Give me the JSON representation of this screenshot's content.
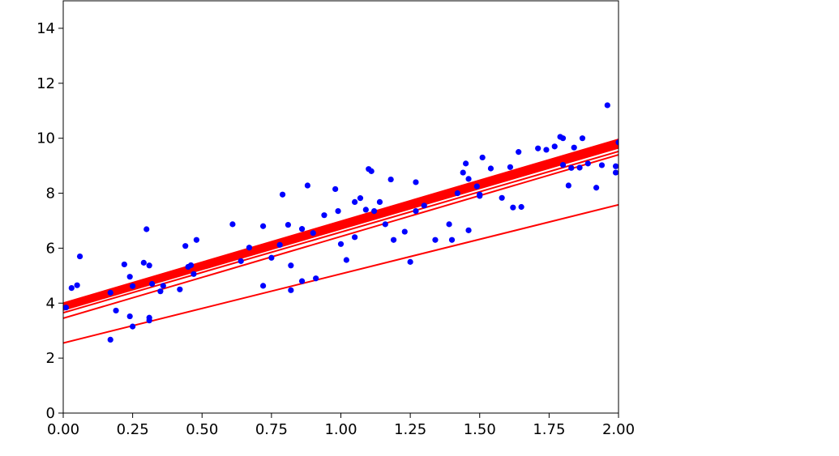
{
  "chart_data": {
    "type": "scatter",
    "title": "",
    "xlabel": "",
    "ylabel": "",
    "xlim": [
      0,
      2
    ],
    "ylim": [
      0,
      15
    ],
    "grid": false,
    "x_ticks": [
      "0.00",
      "0.25",
      "0.50",
      "0.75",
      "1.00",
      "1.25",
      "1.50",
      "1.75",
      "2.00"
    ],
    "x_tick_values": [
      0,
      0.25,
      0.5,
      0.75,
      1.0,
      1.25,
      1.5,
      1.75,
      2.0
    ],
    "y_ticks": [
      "0",
      "2",
      "4",
      "6",
      "8",
      "10",
      "12",
      "14"
    ],
    "y_tick_values": [
      0,
      2,
      4,
      6,
      8,
      10,
      12,
      14
    ],
    "scatter": {
      "color": "#0000ff",
      "points": [
        [
          0.01,
          3.84
        ],
        [
          0.03,
          4.55
        ],
        [
          0.05,
          4.65
        ],
        [
          0.06,
          5.7
        ],
        [
          0.17,
          4.38
        ],
        [
          0.17,
          2.67
        ],
        [
          0.19,
          3.73
        ],
        [
          0.22,
          5.41
        ],
        [
          0.24,
          3.52
        ],
        [
          0.24,
          4.96
        ],
        [
          0.25,
          3.15
        ],
        [
          0.25,
          4.62
        ],
        [
          0.29,
          5.47
        ],
        [
          0.3,
          6.69
        ],
        [
          0.31,
          5.37
        ],
        [
          0.31,
          3.47
        ],
        [
          0.31,
          3.37
        ],
        [
          0.32,
          4.7
        ],
        [
          0.35,
          4.43
        ],
        [
          0.36,
          4.63
        ],
        [
          0.42,
          4.5
        ],
        [
          0.44,
          6.08
        ],
        [
          0.45,
          5.32
        ],
        [
          0.46,
          5.38
        ],
        [
          0.47,
          5.06
        ],
        [
          0.48,
          6.3
        ],
        [
          0.61,
          6.87
        ],
        [
          0.64,
          5.53
        ],
        [
          0.67,
          6.02
        ],
        [
          0.72,
          6.8
        ],
        [
          0.72,
          4.63
        ],
        [
          0.75,
          5.65
        ],
        [
          0.78,
          6.12
        ],
        [
          0.79,
          7.95
        ],
        [
          0.81,
          6.85
        ],
        [
          0.82,
          5.37
        ],
        [
          0.82,
          4.47
        ],
        [
          0.86,
          6.7
        ],
        [
          0.86,
          4.8
        ],
        [
          0.88,
          8.28
        ],
        [
          0.9,
          6.55
        ],
        [
          0.91,
          4.9
        ],
        [
          0.94,
          7.2
        ],
        [
          0.98,
          8.15
        ],
        [
          0.99,
          7.35
        ],
        [
          1.0,
          6.15
        ],
        [
          1.02,
          5.57
        ],
        [
          1.05,
          7.68
        ],
        [
          1.05,
          6.4
        ],
        [
          1.07,
          7.82
        ],
        [
          1.09,
          7.4
        ],
        [
          1.1,
          8.88
        ],
        [
          1.11,
          8.8
        ],
        [
          1.12,
          7.35
        ],
        [
          1.14,
          7.68
        ],
        [
          1.16,
          6.87
        ],
        [
          1.18,
          8.5
        ],
        [
          1.19,
          6.3
        ],
        [
          1.23,
          6.6
        ],
        [
          1.25,
          5.5
        ],
        [
          1.27,
          8.4
        ],
        [
          1.27,
          7.35
        ],
        [
          1.3,
          7.55
        ],
        [
          1.34,
          6.3
        ],
        [
          1.39,
          6.87
        ],
        [
          1.4,
          6.3
        ],
        [
          1.42,
          8.0
        ],
        [
          1.44,
          8.75
        ],
        [
          1.45,
          9.08
        ],
        [
          1.46,
          8.52
        ],
        [
          1.46,
          6.65
        ],
        [
          1.49,
          8.25
        ],
        [
          1.5,
          7.9
        ],
        [
          1.5,
          7.95
        ],
        [
          1.51,
          9.3
        ],
        [
          1.54,
          8.9
        ],
        [
          1.58,
          7.83
        ],
        [
          1.61,
          8.95
        ],
        [
          1.62,
          7.48
        ],
        [
          1.64,
          9.5
        ],
        [
          1.65,
          7.5
        ],
        [
          1.71,
          9.63
        ],
        [
          1.74,
          9.58
        ],
        [
          1.77,
          9.7
        ],
        [
          1.79,
          10.05
        ],
        [
          1.8,
          10.0
        ],
        [
          1.8,
          9.03
        ],
        [
          1.82,
          8.28
        ],
        [
          1.83,
          8.92
        ],
        [
          1.84,
          9.66
        ],
        [
          1.86,
          8.93
        ],
        [
          1.87,
          10.0
        ],
        [
          1.89,
          9.08
        ],
        [
          1.92,
          8.2
        ],
        [
          1.94,
          9.02
        ],
        [
          1.96,
          11.2
        ],
        [
          1.99,
          8.98
        ],
        [
          1.99,
          8.75
        ],
        [
          2.0,
          9.85
        ]
      ]
    },
    "lines": {
      "color": "#ff0000",
      "series": [
        {
          "x": [
            0,
            2
          ],
          "y": [
            2.55,
            7.58
          ]
        },
        {
          "x": [
            0,
            2
          ],
          "y": [
            3.45,
            9.4
          ]
        },
        {
          "x": [
            0,
            2
          ],
          "y": [
            3.65,
            9.52
          ]
        },
        {
          "x": [
            0,
            2
          ],
          "y": [
            3.75,
            9.65
          ]
        },
        {
          "x": [
            0,
            2
          ],
          "y": [
            3.8,
            9.7
          ]
        },
        {
          "x": [
            0,
            2
          ],
          "y": [
            3.84,
            9.74
          ]
        },
        {
          "x": [
            0,
            2
          ],
          "y": [
            3.87,
            9.78
          ]
        },
        {
          "x": [
            0,
            2
          ],
          "y": [
            3.9,
            9.82
          ]
        },
        {
          "x": [
            0,
            2
          ],
          "y": [
            3.92,
            9.86
          ]
        },
        {
          "x": [
            0,
            2
          ],
          "y": [
            3.94,
            9.88
          ]
        },
        {
          "x": [
            0,
            2
          ],
          "y": [
            3.96,
            9.9
          ]
        },
        {
          "x": [
            0,
            2
          ],
          "y": [
            3.98,
            9.92
          ]
        },
        {
          "x": [
            0,
            2
          ],
          "y": [
            3.99,
            9.94
          ]
        },
        {
          "x": [
            0,
            2
          ],
          "y": [
            4.0,
            9.96
          ]
        }
      ]
    }
  }
}
